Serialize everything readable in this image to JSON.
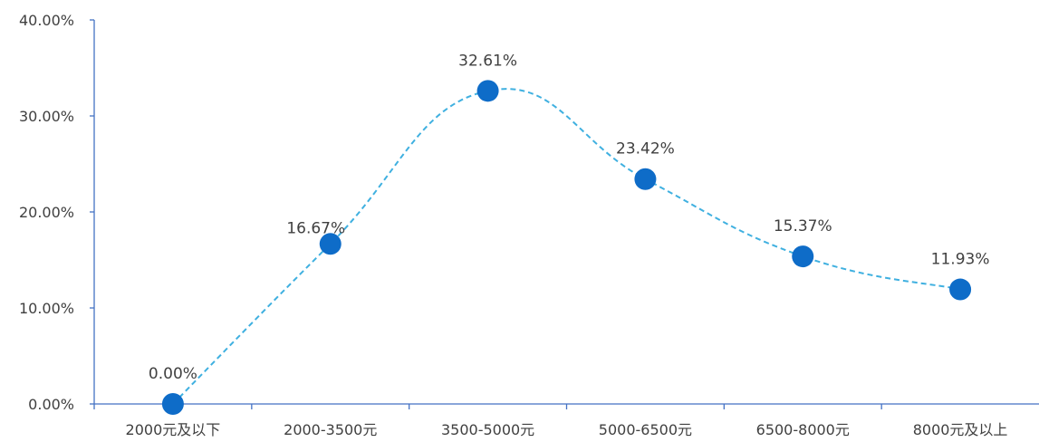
{
  "chart_data": {
    "type": "line",
    "title": "",
    "xlabel": "",
    "ylabel": "",
    "categories": [
      "2000元及以下",
      "2000-3500元",
      "3500-5000元",
      "5000-6500元",
      "6500-8000元",
      "8000元及以上"
    ],
    "series": [
      {
        "values": [
          0.0,
          16.67,
          32.61,
          23.42,
          15.37,
          11.93
        ],
        "labels": [
          "0.00%",
          "16.67%",
          "32.61%",
          "23.42%",
          "15.37%",
          "11.93%"
        ],
        "color": "#3fb0e0",
        "marker_color": "#0e6cc8",
        "line_style": "dashed",
        "smooth": true
      }
    ],
    "ylim": [
      0,
      40
    ],
    "yticks": [
      0,
      10,
      20,
      30,
      40
    ],
    "ytick_labels": [
      "0.00%",
      "10.00%",
      "20.00%",
      "30.00%",
      "40.00%"
    ],
    "grid": false,
    "legend": "none"
  }
}
